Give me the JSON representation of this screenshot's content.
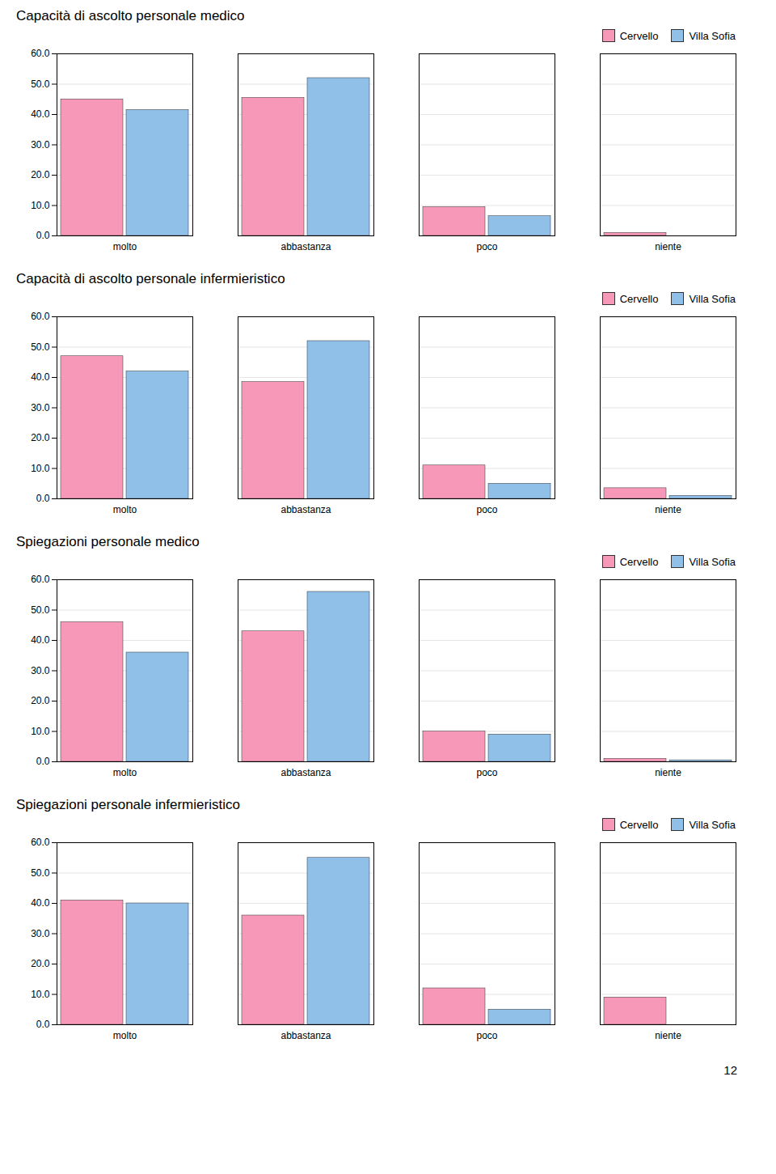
{
  "chart_data": [
    {
      "type": "bar",
      "title": "Capacità di ascolto personale medico",
      "categories": [
        "molto",
        "abbastanza",
        "poco",
        "niente"
      ],
      "series": [
        {
          "name": "Cervello",
          "color": "#F898B8",
          "values": [
            45.0,
            45.5,
            9.5,
            1.0
          ]
        },
        {
          "name": "Villa Sofia",
          "color": "#90C0E8",
          "values": [
            41.5,
            52.0,
            6.5,
            0.0
          ]
        }
      ],
      "ylim": [
        0,
        60
      ],
      "yticks": [
        {
          "value": 0,
          "label": "0.0"
        },
        {
          "value": 10,
          "label": "10.0"
        },
        {
          "value": 20,
          "label": "20.0"
        },
        {
          "value": 30,
          "label": "30.0"
        },
        {
          "value": 40,
          "label": "40.0"
        },
        {
          "value": 50,
          "label": "50.0"
        },
        {
          "value": 60,
          "label": "60.0"
        }
      ],
      "grid": true,
      "legend": "upper right"
    },
    {
      "type": "bar",
      "title": "Capacità di ascolto personale infermieristico",
      "categories": [
        "molto",
        "abbastanza",
        "poco",
        "niente"
      ],
      "series": [
        {
          "name": "Cervello",
          "color": "#F898B8",
          "values": [
            47.0,
            38.5,
            11.0,
            3.5
          ]
        },
        {
          "name": "Villa Sofia",
          "color": "#90C0E8",
          "values": [
            42.0,
            52.0,
            5.0,
            1.0
          ]
        }
      ],
      "ylim": [
        0,
        60
      ],
      "yticks": [
        {
          "value": 0,
          "label": "0.0"
        },
        {
          "value": 10,
          "label": "10.0"
        },
        {
          "value": 20,
          "label": "20.0"
        },
        {
          "value": 30,
          "label": "30.0"
        },
        {
          "value": 40,
          "label": "40.0"
        },
        {
          "value": 50,
          "label": "50.0"
        },
        {
          "value": 60,
          "label": "60.0"
        }
      ],
      "grid": true,
      "legend": "upper right"
    },
    {
      "type": "bar",
      "title": "Spiegazioni personale medico",
      "categories": [
        "molto",
        "abbastanza",
        "poco",
        "niente"
      ],
      "series": [
        {
          "name": "Cervello",
          "color": "#F898B8",
          "values": [
            46.0,
            43.0,
            10.0,
            1.0
          ]
        },
        {
          "name": "Villa Sofia",
          "color": "#90C0E8",
          "values": [
            36.0,
            56.0,
            9.0,
            0.5
          ]
        }
      ],
      "ylim": [
        0,
        60
      ],
      "yticks": [
        {
          "value": 0,
          "label": "0.0"
        },
        {
          "value": 10,
          "label": "10.0"
        },
        {
          "value": 20,
          "label": "20.0"
        },
        {
          "value": 30,
          "label": "30.0"
        },
        {
          "value": 40,
          "label": "40.0"
        },
        {
          "value": 50,
          "label": "50.0"
        },
        {
          "value": 60,
          "label": "60.0"
        }
      ],
      "grid": true,
      "legend": "upper right"
    },
    {
      "type": "bar",
      "title": "Spiegazioni personale infermieristico",
      "categories": [
        "molto",
        "abbastanza",
        "poco",
        "niente"
      ],
      "series": [
        {
          "name": "Cervello",
          "color": "#F898B8",
          "values": [
            41.0,
            36.0,
            12.0,
            9.0
          ]
        },
        {
          "name": "Villa Sofia",
          "color": "#90C0E8",
          "values": [
            40.0,
            55.0,
            5.0,
            0.0
          ]
        }
      ],
      "ylim": [
        0,
        60
      ],
      "yticks": [
        {
          "value": 0,
          "label": "0.0"
        },
        {
          "value": 10,
          "label": "10.0"
        },
        {
          "value": 20,
          "label": "20.0"
        },
        {
          "value": 30,
          "label": "30.0"
        },
        {
          "value": 40,
          "label": "40.0"
        },
        {
          "value": 50,
          "label": "50.0"
        },
        {
          "value": 60,
          "label": "60.0"
        }
      ],
      "grid": true,
      "legend": "upper right"
    }
  ],
  "annotations": [
    "12"
  ]
}
